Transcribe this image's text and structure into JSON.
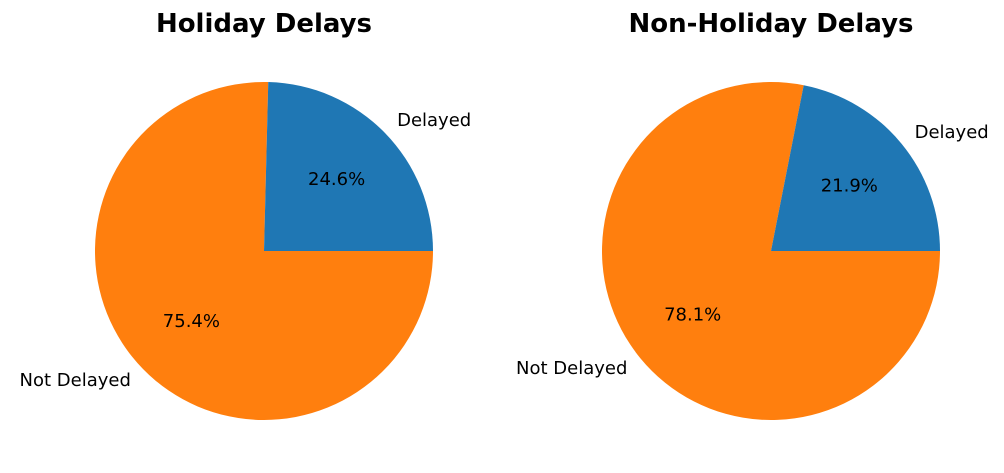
{
  "colors": {
    "delayed": "#1f77b4",
    "not_delayed": "#ff7f0e",
    "background": "#ffffff",
    "text": "#000000"
  },
  "chart_data": [
    {
      "type": "pie",
      "title": "Holiday Delays",
      "labels": [
        "Delayed",
        "Not Delayed"
      ],
      "values": [
        24.6,
        75.4
      ],
      "percent_labels": [
        "24.6%",
        "75.4%"
      ],
      "colors": [
        "#1f77b4",
        "#ff7f0e"
      ],
      "start_angle": 0,
      "direction": "counterclockwise"
    },
    {
      "type": "pie",
      "title": "Non-Holiday Delays",
      "labels": [
        "Delayed",
        "Not Delayed"
      ],
      "values": [
        21.9,
        78.1
      ],
      "percent_labels": [
        "21.9%",
        "78.1%"
      ],
      "colors": [
        "#1f77b4",
        "#ff7f0e"
      ],
      "start_angle": 0,
      "direction": "counterclockwise"
    }
  ]
}
